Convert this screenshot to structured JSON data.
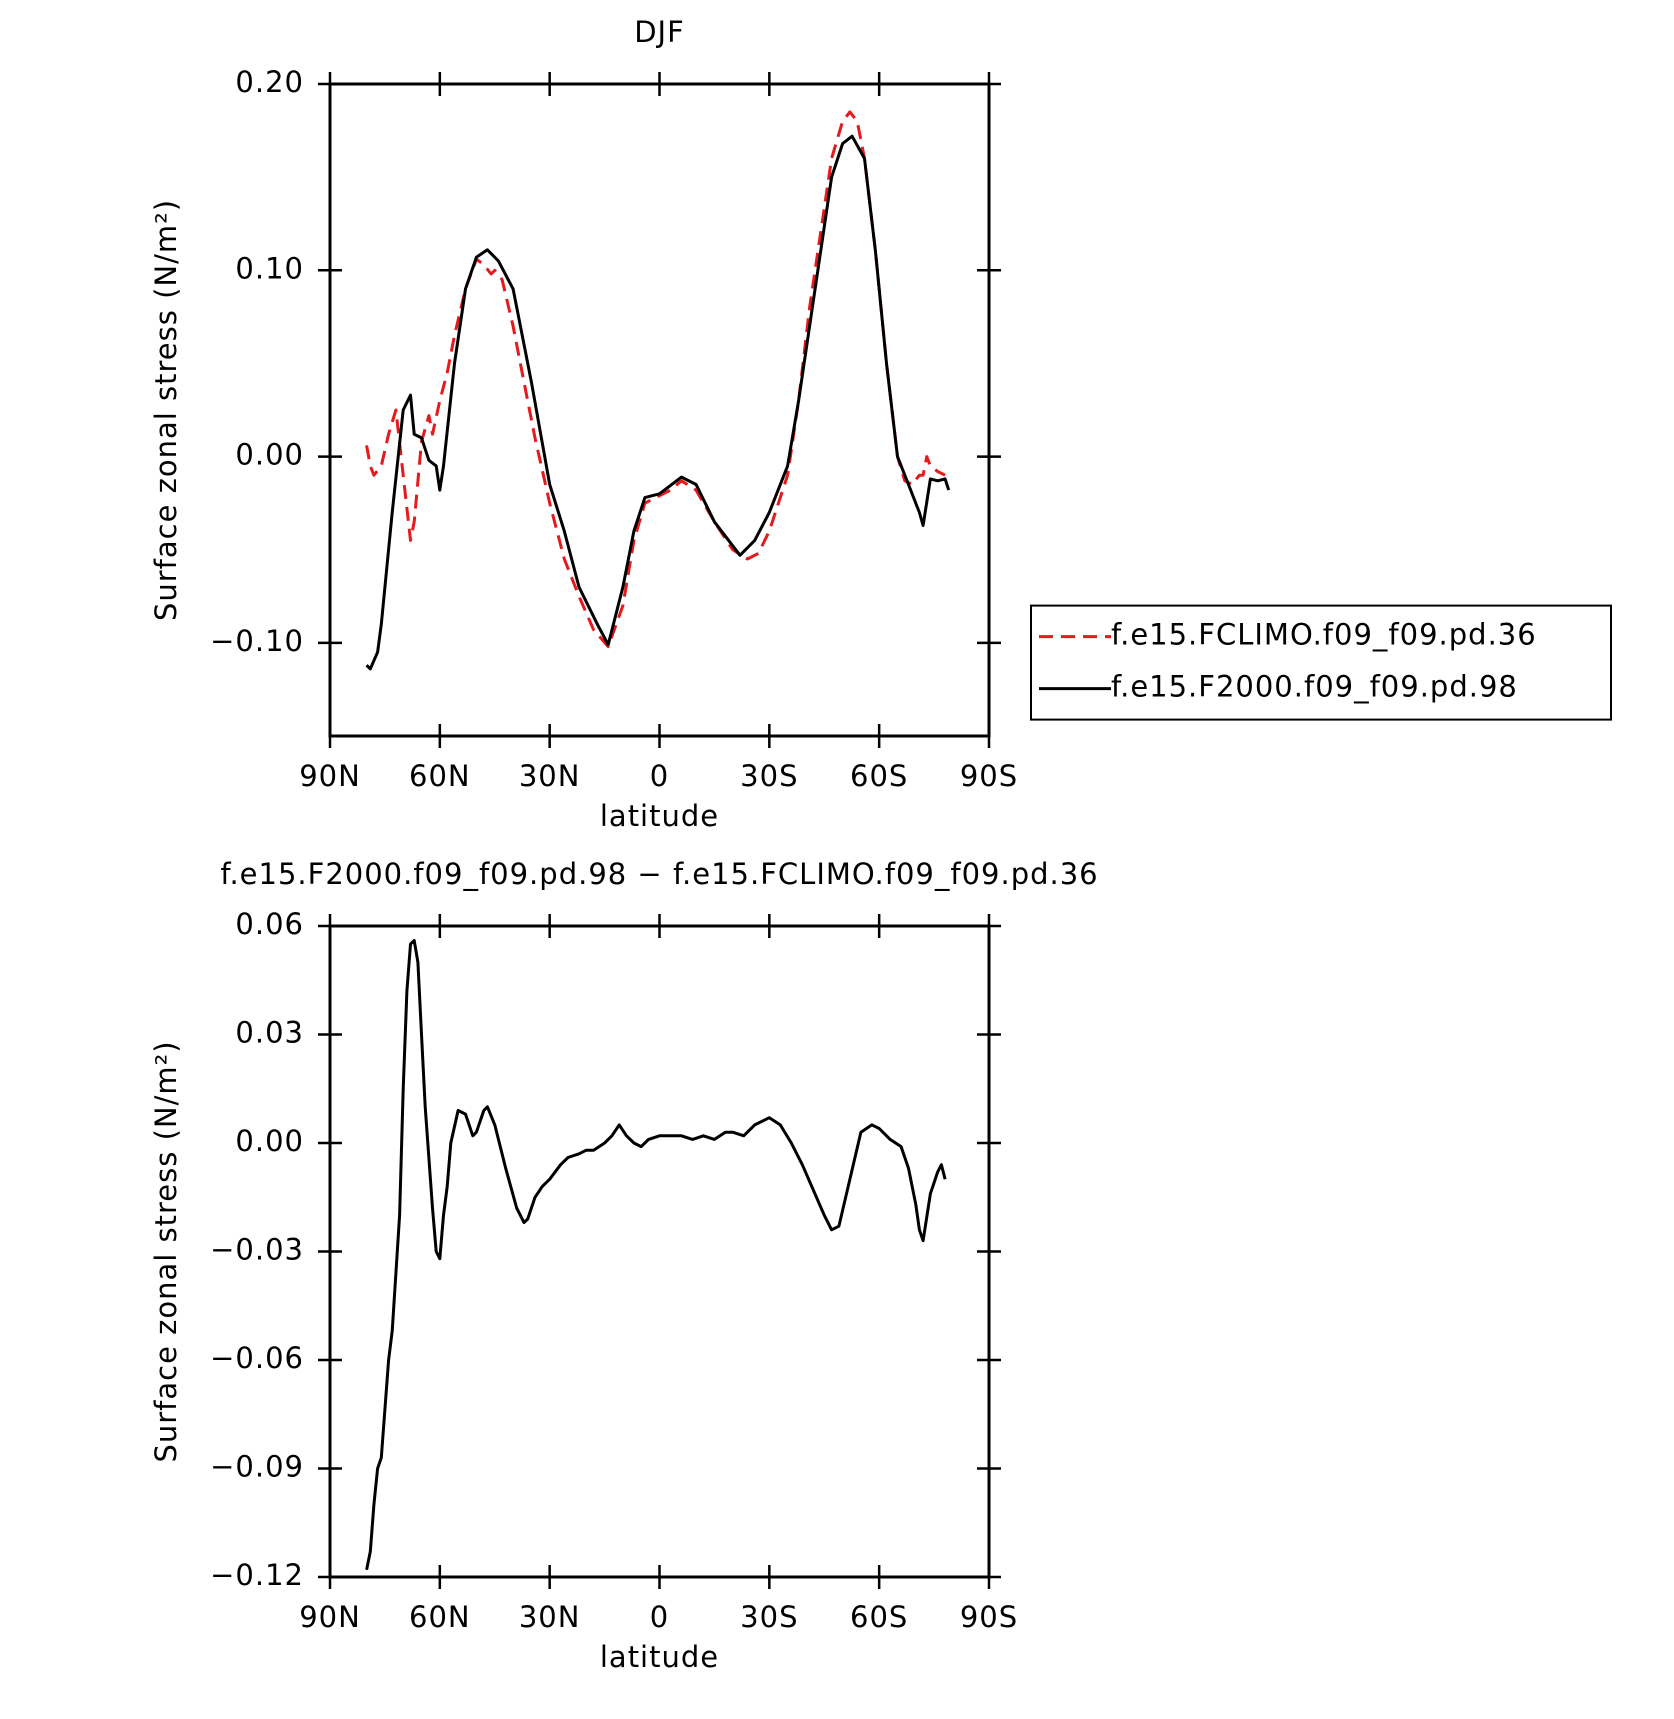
{
  "chart_data": [
    {
      "type": "line",
      "title": "DJF",
      "x_label": "latitude",
      "y_label": "Surface zonal stress (N/m²)",
      "xlim": [
        90,
        -90
      ],
      "xticks": [
        {
          "value": 90,
          "label": "90N"
        },
        {
          "value": 60,
          "label": "60N"
        },
        {
          "value": 30,
          "label": "30N"
        },
        0,
        {
          "value": -30,
          "label": "30S"
        },
        {
          "value": -60,
          "label": "60S"
        },
        {
          "value": -90,
          "label": "90S"
        }
      ],
      "ylim": [
        -0.15,
        0.2
      ],
      "yticks": [
        {
          "value": -0.1,
          "label": "−0.10"
        },
        {
          "value": 0,
          "label": "0.00"
        },
        {
          "value": 0.1,
          "label": "0.10"
        },
        {
          "value": 0.2,
          "label": "0.20"
        }
      ],
      "legend": "outside-right",
      "series": [
        {
          "name": "f.e15.FCLIMO.f09_f09.pd.36",
          "color": "#e41a1c",
          "line_style": "dashed",
          "x": [
            80,
            79,
            78,
            76,
            74,
            72,
            70,
            68,
            67,
            65,
            63,
            62,
            60,
            58,
            56,
            53,
            50,
            48,
            46,
            45,
            43,
            40,
            37,
            34,
            30,
            26,
            22,
            18,
            14,
            10,
            7,
            4,
            0,
            -3,
            -6,
            -10,
            -15,
            -20,
            -24,
            -27,
            -30,
            -35,
            -38,
            -41,
            -44,
            -47,
            -50,
            -52,
            -54,
            -56,
            -59,
            -62,
            -65,
            -67,
            -69,
            -71,
            -72,
            -73,
            -74,
            -76,
            -78
          ],
          "values": [
            0.006,
            -0.005,
            -0.01,
            -0.005,
            0.012,
            0.025,
            -0.01,
            -0.045,
            -0.035,
            0.008,
            0.022,
            0.012,
            0.03,
            0.045,
            0.065,
            0.09,
            0.106,
            0.103,
            0.098,
            0.1,
            0.095,
            0.07,
            0.04,
            0.01,
            -0.025,
            -0.055,
            -0.075,
            -0.093,
            -0.102,
            -0.08,
            -0.045,
            -0.025,
            -0.021,
            -0.018,
            -0.013,
            -0.018,
            -0.035,
            -0.05,
            -0.055,
            -0.052,
            -0.04,
            -0.01,
            0.03,
            0.08,
            0.12,
            0.16,
            0.18,
            0.185,
            0.18,
            0.16,
            0.11,
            0.05,
            0.0,
            -0.013,
            -0.015,
            -0.01,
            -0.01,
            0.0,
            -0.005,
            -0.008,
            -0.01
          ]
        },
        {
          "name": "f.e15.F2000.f09_f09.pd.98",
          "color": "#000000",
          "line_style": "solid",
          "x": [
            80,
            79,
            77,
            76,
            73,
            70,
            68,
            67,
            65,
            63,
            61,
            60,
            59,
            56,
            53,
            50,
            47,
            44,
            40,
            35,
            30,
            26,
            22,
            17,
            14,
            10,
            7,
            4,
            0,
            -6,
            -10,
            -15,
            -22,
            -26,
            -30,
            -35,
            -38,
            -41,
            -44,
            -47,
            -50,
            -52.6,
            -56,
            -59,
            -62,
            -65,
            -68,
            -71,
            -72,
            -74,
            -76,
            -78,
            -79
          ],
          "values": [
            -0.112,
            -0.114,
            -0.105,
            -0.09,
            -0.03,
            0.025,
            0.033,
            0.012,
            0.01,
            -0.002,
            -0.005,
            -0.018,
            -0.005,
            0.05,
            0.09,
            0.107,
            0.111,
            0.105,
            0.09,
            0.04,
            -0.015,
            -0.04,
            -0.07,
            -0.09,
            -0.101,
            -0.07,
            -0.04,
            -0.022,
            -0.02,
            -0.011,
            -0.015,
            -0.035,
            -0.053,
            -0.045,
            -0.03,
            -0.005,
            0.03,
            0.07,
            0.11,
            0.15,
            0.168,
            0.172,
            0.16,
            0.11,
            0.05,
            0.0,
            -0.015,
            -0.03,
            -0.037,
            -0.012,
            -0.013,
            -0.012,
            -0.018
          ]
        }
      ]
    },
    {
      "type": "line",
      "title": "f.e15.F2000.f09_f09.pd.98 − f.e15.FCLIMO.f09_f09.pd.36",
      "x_label": "latitude",
      "y_label": "Surface zonal stress (N/m²)",
      "xlim": [
        90,
        -90
      ],
      "xticks": [
        {
          "value": 90,
          "label": "90N"
        },
        {
          "value": 60,
          "label": "60N"
        },
        {
          "value": 30,
          "label": "30N"
        },
        0,
        {
          "value": -30,
          "label": "30S"
        },
        {
          "value": -60,
          "label": "60S"
        },
        {
          "value": -90,
          "label": "90S"
        }
      ],
      "ylim": [
        -0.12,
        0.06
      ],
      "yticks": [
        {
          "value": -0.12,
          "label": "−0.12"
        },
        {
          "value": -0.09,
          "label": "−0.09"
        },
        {
          "value": -0.06,
          "label": "−0.06"
        },
        {
          "value": -0.03,
          "label": "−0.03"
        },
        {
          "value": 0,
          "label": "0.00"
        },
        {
          "value": 0.03,
          "label": "0.03"
        },
        {
          "value": 0.06,
          "label": "0.06"
        }
      ],
      "series": [
        {
          "color": "#000000",
          "line_style": "solid",
          "x": [
            80,
            79,
            78,
            77,
            76,
            74,
            73,
            71,
            70,
            69,
            68,
            67,
            66,
            65,
            64,
            62,
            61,
            60,
            59,
            58,
            57,
            55,
            53,
            51,
            50,
            48,
            47,
            45,
            42,
            39,
            37,
            36,
            34,
            32,
            30,
            27,
            25,
            22,
            20,
            18,
            15,
            13,
            11,
            9,
            7,
            5,
            3,
            0,
            -3,
            -6,
            -9,
            -12,
            -15,
            -18,
            -20,
            -23,
            -26,
            -30,
            -33,
            -36,
            -39,
            -42,
            -45,
            -47,
            -49,
            -52,
            -55,
            -58,
            -60,
            -63,
            -66,
            -68,
            -70,
            -71,
            -72,
            -74,
            -76,
            -77,
            -78
          ],
          "values": [
            -0.118,
            -0.113,
            -0.1,
            -0.09,
            -0.087,
            -0.06,
            -0.052,
            -0.02,
            0.015,
            0.042,
            0.055,
            0.056,
            0.05,
            0.03,
            0.01,
            -0.018,
            -0.03,
            -0.032,
            -0.02,
            -0.012,
            0.0,
            0.009,
            0.008,
            0.002,
            0.003,
            0.009,
            0.01,
            0.005,
            -0.007,
            -0.018,
            -0.022,
            -0.021,
            -0.015,
            -0.012,
            -0.01,
            -0.006,
            -0.004,
            -0.003,
            -0.002,
            -0.002,
            0.0,
            0.002,
            0.005,
            0.002,
            0.0,
            -0.001,
            0.001,
            0.002,
            0.002,
            0.002,
            0.001,
            0.002,
            0.001,
            0.003,
            0.003,
            0.002,
            0.005,
            0.007,
            0.005,
            0.0,
            -0.006,
            -0.013,
            -0.02,
            -0.024,
            -0.023,
            -0.01,
            0.003,
            0.005,
            0.004,
            0.001,
            -0.001,
            -0.007,
            -0.017,
            -0.024,
            -0.027,
            -0.014,
            -0.008,
            -0.006,
            -0.01
          ]
        }
      ]
    }
  ]
}
